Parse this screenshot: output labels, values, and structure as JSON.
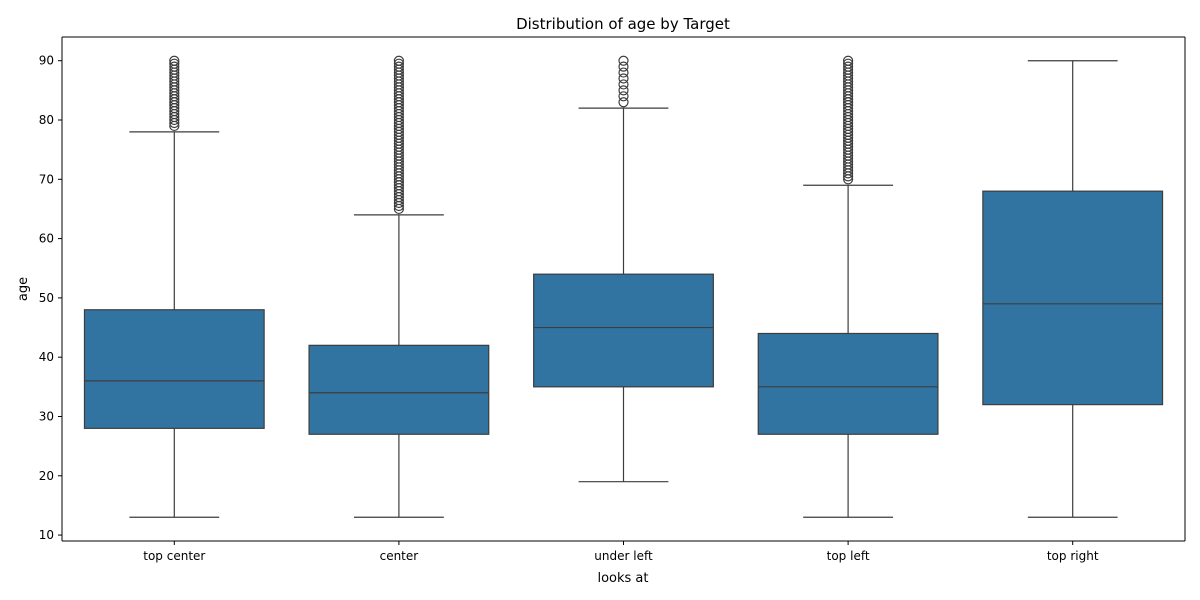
{
  "chart_data": {
    "type": "box",
    "title": "Distribution of age by Target",
    "xlabel": "looks at",
    "ylabel": "age",
    "ylim": [
      9,
      94
    ],
    "yticks": [
      10,
      20,
      30,
      40,
      50,
      60,
      70,
      80,
      90
    ],
    "grid": false,
    "box_color": "#3274a1",
    "edge_color": "#3d3d3d",
    "categories": [
      "top center",
      "center",
      "under left",
      "top left",
      "top right"
    ],
    "boxes": [
      {
        "category": "top center",
        "whisker_low": 13,
        "q1": 28,
        "median": 36,
        "q3": 48,
        "whisker_high": 78,
        "outliers": [
          79,
          79.5,
          80,
          80.5,
          81,
          81.5,
          82,
          82.5,
          83,
          83.5,
          84,
          84.5,
          85,
          85.5,
          86,
          86.5,
          87,
          87.5,
          88,
          88.5,
          89,
          89.5,
          90
        ]
      },
      {
        "category": "center",
        "whisker_low": 13,
        "q1": 27,
        "median": 34,
        "q3": 42,
        "whisker_high": 64,
        "outliers": [
          65,
          65.5,
          66,
          66.5,
          67,
          67.5,
          68,
          68.5,
          69,
          69.5,
          70,
          70.5,
          71,
          71.5,
          72,
          72.5,
          73,
          73.5,
          74,
          74.5,
          75,
          75.5,
          76,
          76.5,
          77,
          77.5,
          78,
          78.5,
          79,
          79.5,
          80,
          80.5,
          81,
          81.5,
          82,
          82.5,
          83,
          83.5,
          84,
          84.5,
          85,
          85.5,
          86,
          86.5,
          87,
          87.5,
          88,
          88.5,
          89,
          89.5,
          90
        ]
      },
      {
        "category": "under left",
        "whisker_low": 19,
        "q1": 35,
        "median": 45,
        "q3": 54,
        "whisker_high": 82,
        "outliers": [
          83,
          84,
          85,
          86,
          87,
          88,
          89,
          90
        ]
      },
      {
        "category": "top left",
        "whisker_low": 13,
        "q1": 27,
        "median": 35,
        "q3": 44,
        "whisker_high": 69,
        "outliers": [
          70,
          70.5,
          71,
          71.5,
          72,
          72.5,
          73,
          73.5,
          74,
          74.5,
          75,
          75.5,
          76,
          76.5,
          77,
          77.5,
          78,
          78.5,
          79,
          79.5,
          80,
          80.5,
          81,
          81.5,
          82,
          82.5,
          83,
          83.5,
          84,
          84.5,
          85,
          85.5,
          86,
          86.5,
          87,
          87.5,
          88,
          88.5,
          89,
          89.5,
          90
        ]
      },
      {
        "category": "top right",
        "whisker_low": 13,
        "q1": 32,
        "median": 49,
        "q3": 68,
        "whisker_high": 90,
        "outliers": []
      }
    ]
  }
}
